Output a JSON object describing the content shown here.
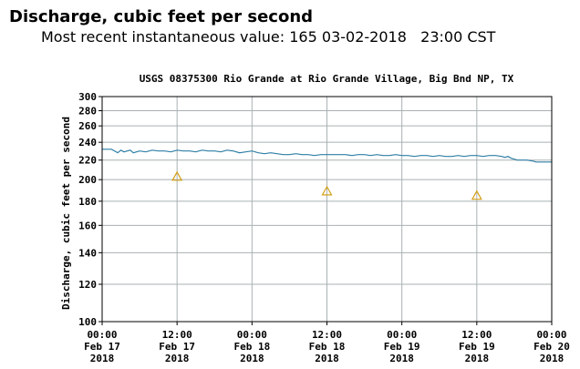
{
  "header": {
    "title": "Discharge, cubic feet per second",
    "recent_label": "Most recent instantaneous value:",
    "recent_value": "165",
    "recent_date": "03-02-2018",
    "recent_time": "23:00",
    "recent_tz": "CST"
  },
  "chart_data": {
    "type": "line",
    "title": "USGS 08375300 Rio Grande at Rio Grande Village, Big Bnd NP, TX",
    "ylabel": "Discharge, cubic feet per second",
    "xlabel": "",
    "y_scale": "log",
    "ylim": [
      100,
      300
    ],
    "y_ticks": [
      100,
      120,
      140,
      160,
      180,
      200,
      220,
      240,
      260,
      280,
      300
    ],
    "xlim_hours": [
      0,
      72
    ],
    "x_ticks": [
      {
        "hour": 0,
        "lines": [
          "00:00",
          "Feb 17",
          "2018"
        ]
      },
      {
        "hour": 12,
        "lines": [
          "12:00",
          "Feb 17",
          "2018"
        ]
      },
      {
        "hour": 24,
        "lines": [
          "00:00",
          "Feb 18",
          "2018"
        ]
      },
      {
        "hour": 36,
        "lines": [
          "12:00",
          "Feb 18",
          "2018"
        ]
      },
      {
        "hour": 48,
        "lines": [
          "00:00",
          "Feb 19",
          "2018"
        ]
      },
      {
        "hour": 60,
        "lines": [
          "12:00",
          "Feb 19",
          "2018"
        ]
      },
      {
        "hour": 72,
        "lines": [
          "00:00",
          "Feb 20",
          "2018"
        ]
      }
    ],
    "grid": true,
    "series": [
      {
        "color": "#2f7fa6",
        "x_hours": [
          0,
          1.5,
          2.5,
          3,
          3.5,
          4.5,
          5,
          6,
          7,
          8,
          9,
          10,
          11,
          12,
          13,
          14,
          15,
          16,
          17,
          18,
          19,
          20,
          21,
          22,
          23,
          24,
          25,
          26,
          27,
          28,
          29,
          30,
          31,
          32,
          33,
          34,
          35,
          36,
          37,
          38,
          39,
          40,
          41,
          42,
          43,
          44,
          45,
          46,
          47,
          48,
          49,
          50,
          51,
          52,
          53,
          54,
          55,
          56,
          57,
          58,
          59,
          60,
          61,
          62,
          63,
          64,
          64.5,
          65,
          65.5,
          66,
          66.5,
          67,
          68,
          69,
          69.5,
          70,
          71,
          72
        ],
        "values": [
          232,
          232,
          228,
          231,
          229,
          231,
          228,
          230,
          229,
          231,
          230,
          230,
          229,
          231,
          230,
          230,
          229,
          231,
          230,
          230,
          229,
          231,
          230,
          228,
          229,
          230,
          228,
          227,
          228,
          227,
          226,
          226,
          227,
          226,
          226,
          225,
          226,
          226,
          226,
          226,
          226,
          225,
          226,
          226,
          225,
          226,
          225,
          225,
          226,
          225,
          225,
          224,
          225,
          225,
          224,
          225,
          224,
          224,
          225,
          224,
          225,
          225,
          224,
          225,
          225,
          224,
          223,
          224,
          222,
          221,
          220,
          220,
          220,
          219,
          218,
          218,
          218,
          218
        ]
      }
    ],
    "markers": [
      {
        "symbol": "triangle",
        "color": "#d4a017",
        "x_hours": 12,
        "value": 203
      },
      {
        "symbol": "triangle",
        "color": "#d4a017",
        "x_hours": 36,
        "value": 189
      },
      {
        "symbol": "triangle",
        "color": "#d4a017",
        "x_hours": 60,
        "value": 185
      }
    ],
    "colors": {
      "grid": "#a9b1b3",
      "axis": "#000000",
      "text": "#000000"
    }
  }
}
